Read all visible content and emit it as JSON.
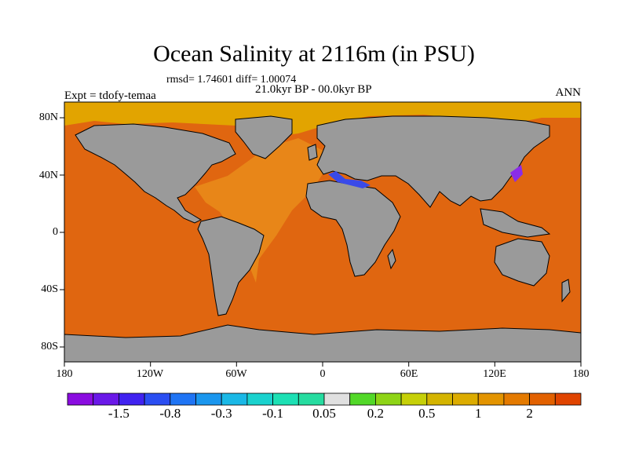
{
  "title": "Ocean Salinity at 2116m (in PSU)",
  "stats": "rmsd= 1.74601 diff= 1.00074",
  "period": "21.0kyr BP - 00.0kyr BP",
  "experiment": "Expt = tdofy-temaa",
  "season": "ANN",
  "y_axis_labels": [
    "80N",
    "40N",
    "0",
    "40S",
    "80S"
  ],
  "x_axis_labels": [
    "180",
    "120W",
    "60W",
    "0",
    "60E",
    "120E",
    "180"
  ],
  "colorbar": {
    "colors": [
      "#8a0ce0",
      "#6a18e8",
      "#4022f0",
      "#2a4ef2",
      "#1f74f4",
      "#1a96ee",
      "#1ab8e6",
      "#1ad2ce",
      "#1ce0b4",
      "#26dca0",
      "#e0e0e0",
      "#52d828",
      "#8ed416",
      "#c6d008",
      "#d4b400",
      "#dcac00",
      "#e39400",
      "#e47a00",
      "#e26100",
      "#e04400"
    ],
    "labels": [
      "-1.5",
      "-0.8",
      "-0.3",
      "-0.1",
      "0.05",
      "0.2",
      "0.5",
      "1",
      "2"
    ]
  },
  "map_colors": {
    "ocean": "#e06610",
    "land": "#9a9a9a",
    "arctic": "#e2a400",
    "atlantic": "#e88618",
    "mediterranean": "#3a4ae8",
    "japan_sea": "#8a2ce8"
  }
}
